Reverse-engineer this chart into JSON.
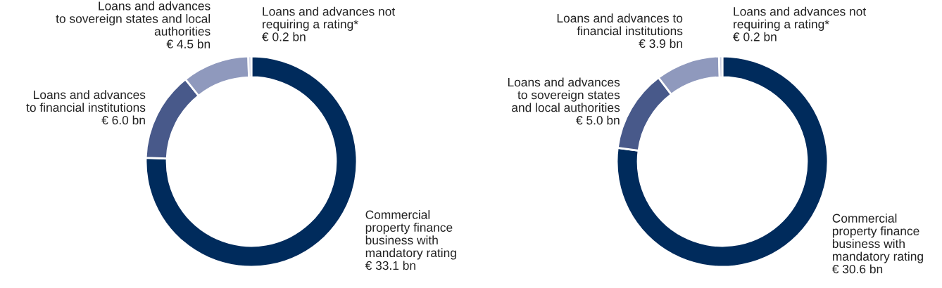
{
  "chart_data": [
    {
      "type": "donut",
      "categories": [
        "Commercial\nproperty finance\nbusiness with\nmandatory rating",
        "Loans and advances\nto financial institutions",
        "Loans and advances\nto sovereign states and local\nauthorities",
        "Loans and advances not\nrequiring a rating*"
      ],
      "values": [
        33.1,
        6.0,
        4.5,
        0.2
      ],
      "value_labels": [
        "€ 33.1 bn",
        "€ 6.0 bn",
        "€ 4.5 bn",
        "€ 0.2 bn"
      ],
      "colors": [
        "#002b5c",
        "#48598a",
        "#8f99bd",
        "#c9cde0"
      ]
    },
    {
      "type": "donut",
      "categories": [
        "Commercial\nproperty finance\nbusiness with\nmandatory rating",
        "Loans and advances\nto sovereign states\nand local authorities",
        "Loans and advances to\nfinancial institutions",
        "Loans and advances not\nrequiring a rating*"
      ],
      "values": [
        30.6,
        5.0,
        3.9,
        0.2
      ],
      "value_labels": [
        "€ 30.6 bn",
        "€ 5.0 bn",
        "€ 3.9 bn",
        "€ 0.2 bn"
      ],
      "colors": [
        "#002b5c",
        "#48598a",
        "#8f99bd",
        "#c9cde0"
      ]
    }
  ]
}
